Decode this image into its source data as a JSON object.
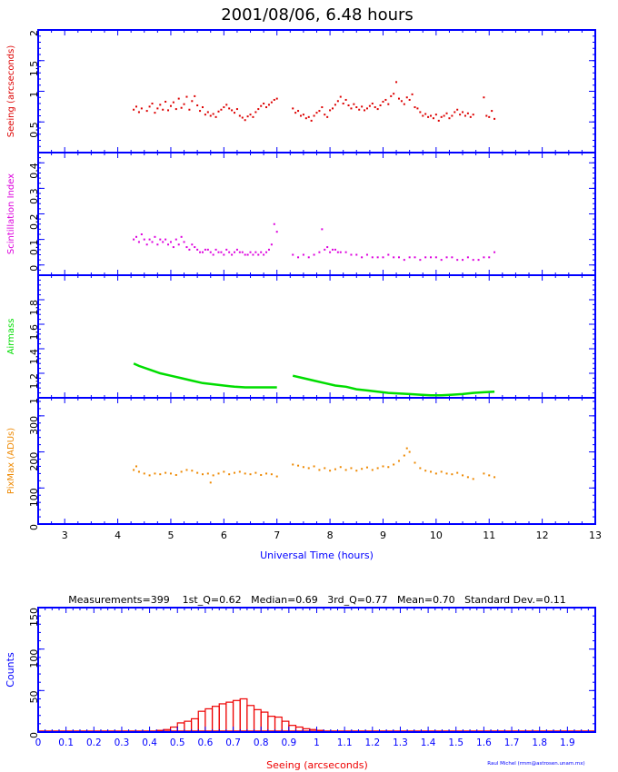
{
  "title": "2001/08/06, 6.48 hours",
  "credit": "Raul Michel (rmm@astrosen.unam.mx)",
  "colors": {
    "frame": "#0000ff",
    "seeing": "#dd0000",
    "scint": "#dd00dd",
    "airmass": "#00dd00",
    "pixmax": "#ee8800",
    "hist": "#ee0000"
  },
  "chart_data": [
    {
      "type": "scatter",
      "name": "seeing-panel",
      "ylabel": "Seeing (arcseconds)",
      "ylim": [
        0,
        2
      ],
      "yticks": [
        0.5,
        1,
        1.5,
        2
      ],
      "yticklabels": [
        "0.5",
        "1",
        "1.5",
        "2"
      ],
      "xlim": [
        2.5,
        13
      ],
      "series": [
        {
          "color": "#dd0000",
          "x": [
            4.3,
            4.35,
            4.4,
            4.45,
            4.55,
            4.6,
            4.65,
            4.7,
            4.75,
            4.8,
            4.85,
            4.9,
            4.95,
            5.0,
            5.05,
            5.1,
            5.15,
            5.2,
            5.25,
            5.3,
            5.35,
            5.4,
            5.45,
            5.5,
            5.55,
            5.6,
            5.65,
            5.7,
            5.75,
            5.8,
            5.85,
            5.9,
            5.95,
            6.0,
            6.05,
            6.1,
            6.15,
            6.2,
            6.25,
            6.3,
            6.35,
            6.4,
            6.45,
            6.5,
            6.55,
            6.6,
            6.65,
            6.7,
            6.75,
            6.8,
            6.85,
            6.9,
            6.95,
            7.0,
            7.3,
            7.35,
            7.4,
            7.45,
            7.5,
            7.55,
            7.6,
            7.65,
            7.7,
            7.75,
            7.8,
            7.85,
            7.9,
            7.95,
            8.0,
            8.05,
            8.1,
            8.15,
            8.2,
            8.25,
            8.3,
            8.35,
            8.4,
            8.45,
            8.5,
            8.55,
            8.6,
            8.65,
            8.7,
            8.75,
            8.8,
            8.85,
            8.9,
            8.95,
            9.0,
            9.05,
            9.1,
            9.15,
            9.2,
            9.25,
            9.3,
            9.35,
            9.4,
            9.45,
            9.5,
            9.55,
            9.6,
            9.65,
            9.7,
            9.75,
            9.8,
            9.85,
            9.9,
            9.95,
            10.0,
            10.05,
            10.1,
            10.15,
            10.2,
            10.25,
            10.3,
            10.35,
            10.4,
            10.45,
            10.5,
            10.55,
            10.6,
            10.65,
            10.7,
            10.9,
            10.95,
            11.0,
            11.05,
            11.1
          ],
          "y": [
            0.7,
            0.75,
            0.66,
            0.72,
            0.68,
            0.75,
            0.8,
            0.65,
            0.72,
            0.78,
            0.7,
            0.83,
            0.69,
            0.76,
            0.82,
            0.71,
            0.88,
            0.73,
            0.79,
            0.91,
            0.7,
            0.84,
            0.92,
            0.77,
            0.68,
            0.74,
            0.62,
            0.66,
            0.6,
            0.63,
            0.58,
            0.67,
            0.7,
            0.74,
            0.78,
            0.72,
            0.69,
            0.65,
            0.71,
            0.6,
            0.57,
            0.53,
            0.59,
            0.62,
            0.58,
            0.66,
            0.71,
            0.76,
            0.8,
            0.74,
            0.78,
            0.82,
            0.86,
            0.88,
            0.72,
            0.65,
            0.68,
            0.6,
            0.62,
            0.56,
            0.58,
            0.52,
            0.6,
            0.65,
            0.68,
            0.74,
            0.62,
            0.58,
            0.69,
            0.72,
            0.78,
            0.84,
            0.91,
            0.8,
            0.86,
            0.77,
            0.72,
            0.79,
            0.74,
            0.7,
            0.75,
            0.69,
            0.72,
            0.76,
            0.8,
            0.74,
            0.71,
            0.77,
            0.83,
            0.86,
            0.79,
            0.92,
            0.96,
            1.15,
            0.88,
            0.84,
            0.79,
            0.9,
            0.86,
            0.95,
            0.74,
            0.72,
            0.66,
            0.6,
            0.63,
            0.58,
            0.6,
            0.56,
            0.62,
            0.52,
            0.58,
            0.6,
            0.64,
            0.56,
            0.6,
            0.66,
            0.7,
            0.62,
            0.66,
            0.6,
            0.64,
            0.58,
            0.62,
            0.9,
            0.6,
            0.58,
            0.68,
            0.55
          ]
        }
      ]
    },
    {
      "type": "scatter",
      "name": "scintillation-panel",
      "ylabel": "Scintillation Index",
      "ylim": [
        -0.04,
        0.44
      ],
      "yticks": [
        0,
        0.1,
        0.2,
        0.3,
        0.4
      ],
      "yticklabels": [
        "0",
        "0.1",
        "0.2",
        "0.3",
        "0.4"
      ],
      "xlim": [
        2.5,
        13
      ],
      "series": [
        {
          "color": "#dd00dd",
          "x": [
            4.3,
            4.35,
            4.4,
            4.45,
            4.5,
            4.55,
            4.6,
            4.65,
            4.7,
            4.75,
            4.8,
            4.85,
            4.9,
            4.95,
            5.0,
            5.05,
            5.1,
            5.15,
            5.2,
            5.25,
            5.3,
            5.35,
            5.4,
            5.45,
            5.5,
            5.55,
            5.6,
            5.65,
            5.7,
            5.75,
            5.8,
            5.85,
            5.9,
            5.95,
            6.0,
            6.05,
            6.1,
            6.15,
            6.2,
            6.25,
            6.3,
            6.35,
            6.4,
            6.45,
            6.5,
            6.55,
            6.6,
            6.65,
            6.7,
            6.75,
            6.8,
            6.85,
            6.9,
            6.95,
            7.0,
            7.3,
            7.4,
            7.5,
            7.6,
            7.7,
            7.8,
            7.85,
            7.9,
            7.95,
            8.0,
            8.05,
            8.1,
            8.15,
            8.2,
            8.3,
            8.4,
            8.5,
            8.6,
            8.7,
            8.8,
            8.9,
            9.0,
            9.1,
            9.2,
            9.3,
            9.4,
            9.5,
            9.6,
            9.7,
            9.8,
            9.9,
            10.0,
            10.1,
            10.2,
            10.3,
            10.4,
            10.5,
            10.6,
            10.7,
            10.8,
            10.9,
            11.0,
            11.1
          ],
          "y": [
            0.1,
            0.11,
            0.09,
            0.12,
            0.1,
            0.08,
            0.1,
            0.09,
            0.11,
            0.08,
            0.1,
            0.09,
            0.1,
            0.08,
            0.09,
            0.07,
            0.1,
            0.08,
            0.11,
            0.09,
            0.07,
            0.06,
            0.08,
            0.07,
            0.06,
            0.05,
            0.05,
            0.06,
            0.06,
            0.05,
            0.04,
            0.06,
            0.05,
            0.05,
            0.04,
            0.06,
            0.05,
            0.04,
            0.05,
            0.06,
            0.05,
            0.05,
            0.04,
            0.04,
            0.05,
            0.04,
            0.05,
            0.04,
            0.05,
            0.04,
            0.05,
            0.06,
            0.08,
            0.16,
            0.13,
            0.04,
            0.03,
            0.04,
            0.03,
            0.04,
            0.05,
            0.14,
            0.06,
            0.07,
            0.05,
            0.06,
            0.06,
            0.05,
            0.05,
            0.05,
            0.04,
            0.04,
            0.03,
            0.04,
            0.03,
            0.03,
            0.03,
            0.04,
            0.03,
            0.03,
            0.02,
            0.03,
            0.03,
            0.02,
            0.03,
            0.03,
            0.03,
            0.02,
            0.03,
            0.03,
            0.02,
            0.02,
            0.03,
            0.02,
            0.02,
            0.03,
            0.03,
            0.05
          ]
        }
      ]
    },
    {
      "type": "line",
      "name": "airmass-panel",
      "ylabel": "Airmass",
      "ylim": [
        1,
        2
      ],
      "yticks": [
        1,
        1.2,
        1.4,
        1.6,
        1.8
      ],
      "yticklabels": [
        "1",
        "1.2",
        "1.4",
        "1.6",
        "1.8"
      ],
      "xlim": [
        2.5,
        13
      ],
      "series": [
        {
          "color": "#00dd00",
          "x": [
            4.3,
            4.4,
            4.6,
            4.8,
            5.0,
            5.2,
            5.4,
            5.6,
            5.8,
            6.0,
            6.2,
            6.4,
            6.6,
            6.8,
            7.0
          ],
          "y": [
            1.28,
            1.26,
            1.23,
            1.2,
            1.18,
            1.16,
            1.14,
            1.12,
            1.11,
            1.1,
            1.09,
            1.085,
            1.085,
            1.085,
            1.085
          ]
        },
        {
          "color": "#00dd00",
          "x": [
            7.3,
            7.5,
            7.7,
            7.9,
            8.1,
            8.3,
            8.5,
            8.7,
            8.9,
            9.1,
            9.3,
            9.5,
            9.7,
            9.9,
            10.1,
            10.3,
            10.5,
            10.7,
            10.9,
            11.1
          ],
          "y": [
            1.18,
            1.16,
            1.14,
            1.12,
            1.1,
            1.09,
            1.07,
            1.06,
            1.05,
            1.04,
            1.035,
            1.03,
            1.025,
            1.02,
            1.02,
            1.025,
            1.03,
            1.04,
            1.045,
            1.05
          ]
        }
      ]
    },
    {
      "type": "scatter",
      "name": "pixmax-panel",
      "ylabel": "PixMax (ADUs)",
      "ylim": [
        0,
        350
      ],
      "yticks": [
        0,
        100,
        200,
        300
      ],
      "yticklabels": [
        "0",
        "100",
        "200",
        "300"
      ],
      "xaxis_label": "Universal Time (hours)",
      "xticks": [
        3,
        4,
        5,
        6,
        7,
        8,
        9,
        10,
        11,
        12,
        13
      ],
      "xticklabels": [
        "3",
        "4",
        "5",
        "6",
        "7",
        "8",
        "9",
        "10",
        "11",
        "12",
        "13"
      ],
      "xlim": [
        2.5,
        13
      ],
      "series": [
        {
          "color": "#ee8800",
          "x": [
            4.3,
            4.35,
            4.4,
            4.5,
            4.6,
            4.7,
            4.8,
            4.9,
            5.0,
            5.1,
            5.2,
            5.3,
            5.4,
            5.5,
            5.6,
            5.7,
            5.75,
            5.8,
            5.9,
            6.0,
            6.1,
            6.2,
            6.3,
            6.4,
            6.5,
            6.6,
            6.7,
            6.8,
            6.9,
            7.0,
            7.3,
            7.4,
            7.5,
            7.6,
            7.7,
            7.8,
            7.9,
            8.0,
            8.1,
            8.2,
            8.3,
            8.4,
            8.5,
            8.6,
            8.7,
            8.8,
            8.9,
            9.0,
            9.1,
            9.2,
            9.3,
            9.4,
            9.45,
            9.5,
            9.6,
            9.7,
            9.8,
            9.9,
            10.0,
            10.1,
            10.2,
            10.3,
            10.4,
            10.5,
            10.6,
            10.7,
            10.9,
            11.0,
            11.1
          ],
          "y": [
            150,
            160,
            145,
            140,
            135,
            140,
            138,
            142,
            140,
            136,
            145,
            150,
            148,
            142,
            138,
            140,
            115,
            135,
            140,
            145,
            138,
            142,
            145,
            140,
            138,
            142,
            136,
            140,
            138,
            132,
            165,
            162,
            158,
            155,
            160,
            150,
            155,
            148,
            152,
            158,
            150,
            155,
            148,
            153,
            157,
            150,
            155,
            160,
            158,
            165,
            175,
            190,
            210,
            200,
            170,
            155,
            148,
            145,
            140,
            145,
            140,
            138,
            142,
            135,
            130,
            125,
            140,
            135,
            130
          ]
        }
      ]
    },
    {
      "type": "bar",
      "name": "histogram",
      "stats": "Measurements=399    1st_Q=0.62   Median=0.69   3rd_Q=0.77   Mean=0.70   Standard Dev.=0.11",
      "xlabel": "Seeing (arcseconds)",
      "ylabel": "Counts",
      "ylim": [
        0,
        150
      ],
      "yticks": [
        0,
        50,
        100,
        150
      ],
      "yticklabels": [
        "0",
        "50",
        "100",
        "150"
      ],
      "xlim": [
        0,
        2
      ],
      "xticks": [
        0,
        0.1,
        0.2,
        0.3,
        0.4,
        0.5,
        0.6,
        0.7,
        0.8,
        0.9,
        1,
        1.1,
        1.2,
        1.3,
        1.4,
        1.5,
        1.6,
        1.7,
        1.8,
        1.9
      ],
      "xticklabels": [
        "0",
        "0.1",
        "0.2",
        "0.3",
        "0.4",
        "0.5",
        "0.6",
        "0.7",
        "0.8",
        "0.9",
        "1",
        "1.1",
        "1.2",
        "1.3",
        "1.4",
        "1.5",
        "1.6",
        "1.7",
        "1.8",
        "1.9"
      ],
      "bin_width": 0.025,
      "bin_starts": [
        0.375,
        0.4,
        0.425,
        0.45,
        0.475,
        0.5,
        0.525,
        0.55,
        0.575,
        0.6,
        0.625,
        0.65,
        0.675,
        0.7,
        0.725,
        0.75,
        0.775,
        0.8,
        0.825,
        0.85,
        0.875,
        0.9,
        0.925,
        0.95,
        0.975,
        1.0,
        1.025,
        1.05,
        1.1,
        1.15,
        1.175
      ],
      "counts": [
        1,
        1,
        2,
        3,
        6,
        11,
        13,
        16,
        25,
        28,
        31,
        34,
        36,
        38,
        40,
        32,
        27,
        24,
        19,
        18,
        13,
        8,
        6,
        4,
        3,
        2,
        1,
        1,
        1,
        1,
        1
      ]
    }
  ]
}
